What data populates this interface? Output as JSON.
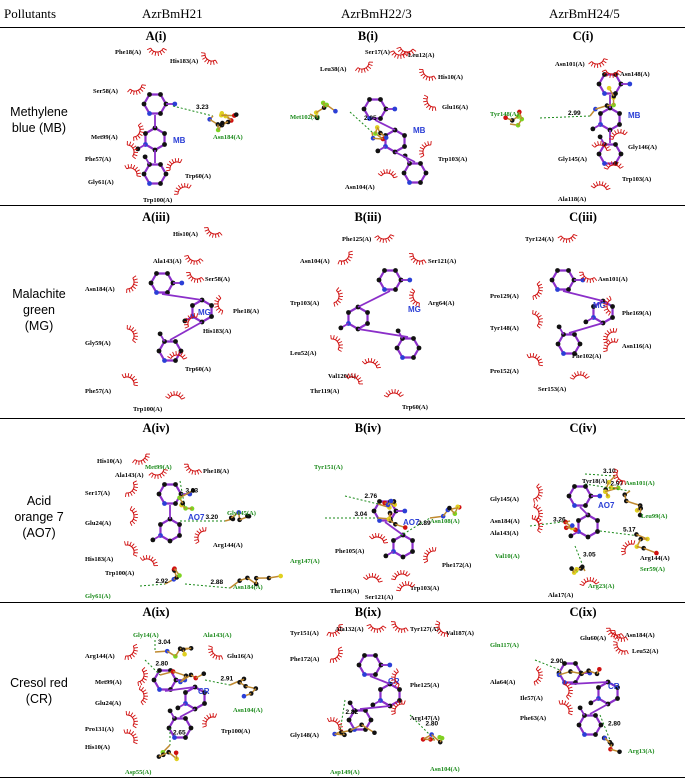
{
  "header": {
    "pollutants": "Pollutants",
    "col1": "AzrBmH21",
    "col2": "AzrBmH22/3",
    "col3": "AzrBmH24/5"
  },
  "rows": [
    {
      "label_line1": "Methylene",
      "label_line2": "blue (MB)",
      "panels": [
        {
          "title": "A(i)",
          "ligand": "MB",
          "distances": [
            "3.23"
          ],
          "residues": [
            "Phe18(A)",
            "His183(A)",
            "Ser58(A)",
            "Met99(A)",
            "Phe57(A)",
            "Gly61(A)",
            "Trp60(A)",
            "Trp100(A)",
            "Asn184(A)"
          ]
        },
        {
          "title": "B(i)",
          "ligand": "MB",
          "distances": [
            "2.95"
          ],
          "residues": [
            "Ser17(A)",
            "Leu12(A)",
            "Leu38(A)",
            "His10(A)",
            "Met102(A)",
            "Glu16(A)",
            "Trp103(A)",
            "Asn104(A)"
          ]
        },
        {
          "title": "C(i)",
          "ligand": "MB",
          "distances": [
            "2.99"
          ],
          "residues": [
            "Asn101(A)",
            "Asn148(A)",
            "Tyr148(A)",
            "Gly146(A)",
            "Gly145(A)",
            "Trp103(A)",
            "Ala118(A)"
          ]
        }
      ]
    },
    {
      "label_line1": "Malachite",
      "label_line2": "green",
      "label_line3": "(MG)",
      "panels": [
        {
          "title": "A(iii)",
          "ligand": "MG",
          "distances": [],
          "residues": [
            "His10(A)",
            "Ala143(A)",
            "Ser58(A)",
            "Asn184(A)",
            "Phe18(A)",
            "His183(A)",
            "Gly59(A)",
            "Trp60(A)",
            "Phe57(A)",
            "Trp100(A)"
          ]
        },
        {
          "title": "B(iii)",
          "ligand": "MG",
          "distances": [],
          "residues": [
            "Phe125(A)",
            "Asn104(A)",
            "Ser121(A)",
            "Trp103(A)",
            "Arg64(A)",
            "Leu52(A)",
            "Val120(A)",
            "Thr119(A)",
            "Trp60(A)"
          ]
        },
        {
          "title": "C(iii)",
          "ligand": "MG",
          "distances": [],
          "residues": [
            "Tyr124(A)",
            "Asn101(A)",
            "Pro129(A)",
            "Phe169(A)",
            "Tyr148(A)",
            "Asn116(A)",
            "Phe102(A)",
            "Pro152(A)",
            "Ser153(A)"
          ]
        }
      ]
    },
    {
      "label_line1": "Acid",
      "label_line2": "orange 7",
      "label_line3": "(AO7)",
      "panels": [
        {
          "title": "A(iv)",
          "ligand": "AO7",
          "distances": [
            "3.03",
            "3.20",
            "2.92",
            "2.88"
          ],
          "residues": [
            "His10(A)",
            "Ala143(A)",
            "Met99(A)",
            "Phe18(A)",
            "Ser17(A)",
            "Gly145(A)",
            "Glu24(A)",
            "Arg144(A)",
            "His183(A)",
            "Trp100(A)",
            "Gly61(A)",
            "Asn184(A)"
          ]
        },
        {
          "title": "B(iv)",
          "ligand": "AO7",
          "distances": [
            "2.76",
            "3.04",
            "2.89"
          ],
          "residues": [
            "Tyr151(A)",
            "Asn108(A)",
            "Arg147(A)",
            "Phe105(A)",
            "Phe172(A)",
            "Trp103(A)",
            "Thr119(A)",
            "Ser121(A)"
          ]
        },
        {
          "title": "C(iv)",
          "ligand": "AO7",
          "distances": [
            "3.10",
            "2.97",
            "3.26",
            "5.17",
            "3.05"
          ],
          "residues": [
            "Tyr18(A)",
            "Gly145(A)",
            "Asn101(A)",
            "Asn184(A)",
            "Leu99(A)",
            "Ala143(A)",
            "Arg144(A)",
            "Val10(A)",
            "Ser59(A)",
            "Ala17(A)",
            "Arg23(A)"
          ]
        }
      ]
    },
    {
      "label_line1": "Cresol red",
      "label_line2": "(CR)",
      "panels": [
        {
          "title": "A(ix)",
          "ligand": "CR",
          "distances": [
            "3.04",
            "2.80",
            "2.91",
            "2.65"
          ],
          "residues": [
            "Gly14(A)",
            "Ala143(A)",
            "Arg144(A)",
            "Glu16(A)",
            "Met99(A)",
            "Glu24(A)",
            "Asn104(A)",
            "Pro131(A)",
            "Trp100(A)",
            "His10(A)",
            "Asp55(A)"
          ]
        },
        {
          "title": "B(ix)",
          "ligand": "CR",
          "distances": [
            "2.82",
            "2.80"
          ],
          "residues": [
            "Tyr151(A)",
            "Ala132(A)",
            "Tyr127(A)",
            "Val187(A)",
            "Phe172(A)",
            "Phe125(A)",
            "Gly148(A)",
            "Arg147(A)",
            "Asp149(A)",
            "Asn104(A)"
          ]
        },
        {
          "title": "C(ix)",
          "ligand": "CR",
          "distances": [
            "2.90",
            "2.80"
          ],
          "residues": [
            "Gln117(A)",
            "Glu60(A)",
            "Asn184(A)",
            "Leu52(A)",
            "Ala64(A)",
            "Ile57(A)",
            "Phe63(A)",
            "Arg13(A)"
          ]
        }
      ]
    }
  ],
  "colors": {
    "ligand_bond": "#8b2fc9",
    "ligand_label": "#2b3fd6",
    "hbond": "#1a8a1a",
    "hb_residue": "#1a8a1a",
    "arc": "#d01010",
    "carbon": "#111111",
    "nitrogen": "#2b3fd6",
    "oxygen": "#d01010",
    "sulfur": "#e0d020",
    "halogen": "#7ed321"
  }
}
